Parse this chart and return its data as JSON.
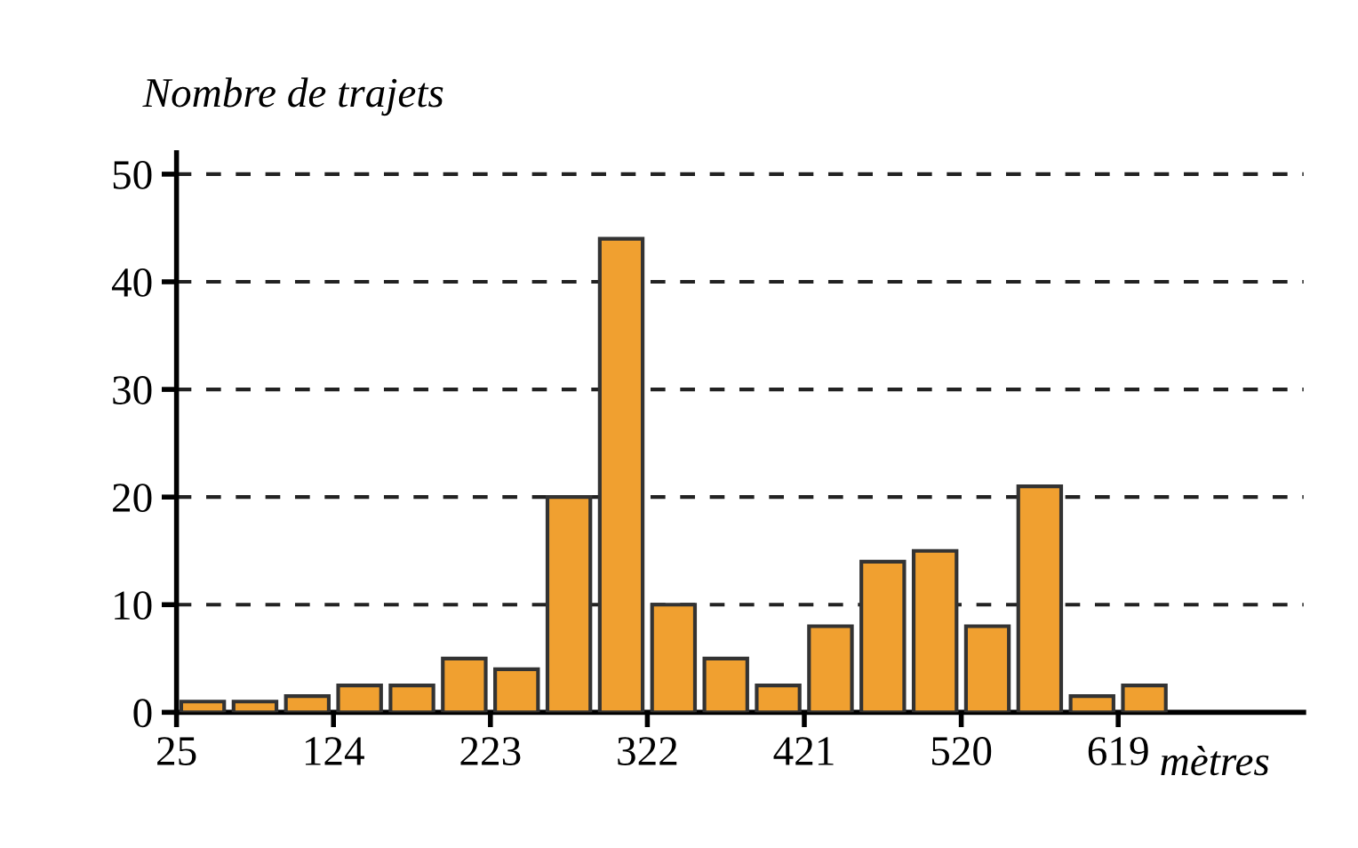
{
  "chart_data": {
    "type": "histogram",
    "ylabel": "Nombre de trajets",
    "xlabel": "mètres",
    "bins": [
      25,
      58,
      91,
      124,
      157,
      190,
      223,
      256,
      289,
      322,
      355,
      388,
      421,
      454,
      487,
      520,
      553,
      586,
      619,
      652
    ],
    "values": [
      1,
      1,
      1.5,
      2.5,
      2.5,
      5,
      4,
      20,
      44,
      10,
      5,
      2.5,
      8,
      14,
      15,
      8,
      21,
      1.5,
      2.5
    ],
    "color": "#f0a030",
    "xlim": [
      25,
      736
    ],
    "xticks": [
      25,
      124,
      223,
      322,
      421,
      520,
      619
    ],
    "ylim": [
      0,
      52
    ],
    "yticks": [
      0,
      10,
      20,
      30,
      40,
      50
    ],
    "grid": "y",
    "line_style": "dashed"
  }
}
